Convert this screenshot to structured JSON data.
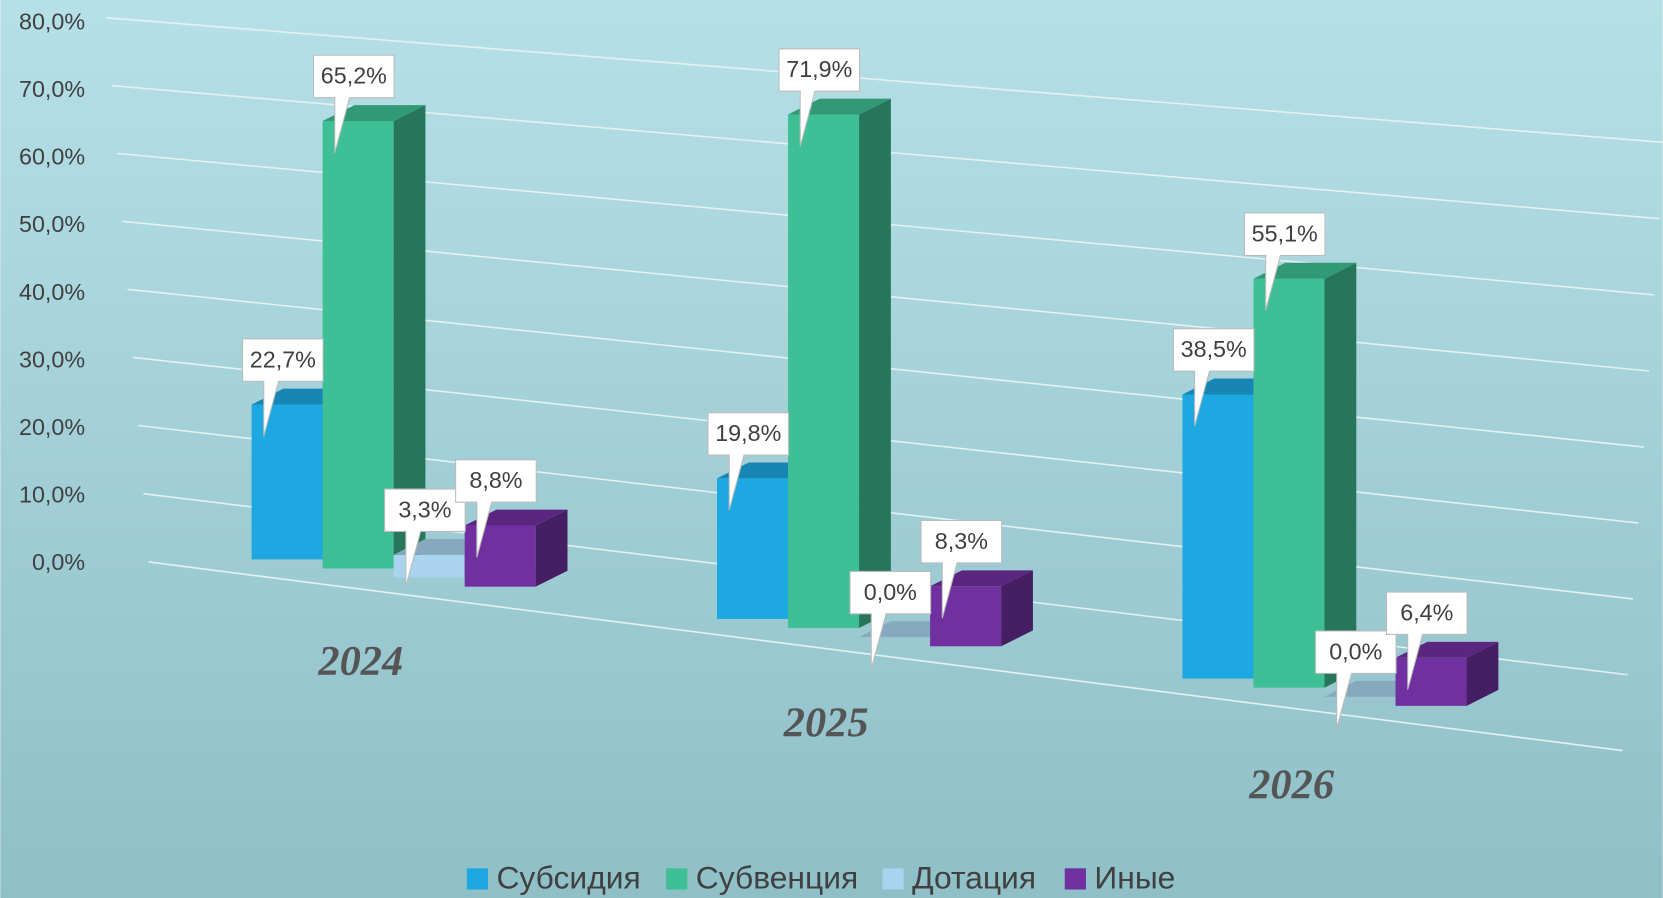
{
  "chart_data": {
    "type": "bar3d",
    "categories": [
      "2024",
      "2025",
      "2026"
    ],
    "series": [
      {
        "name": "Субсидия",
        "color": "#1ea8e2",
        "values": [
          22.7,
          19.8,
          38.5
        ],
        "value_labels": [
          "22,7%",
          "19,8%",
          "38,5%"
        ]
      },
      {
        "name": "Субвенция",
        "color": "#3fbf95",
        "values": [
          65.2,
          71.9,
          55.1
        ],
        "value_labels": [
          "65,2%",
          "71,9%",
          "55,1%"
        ]
      },
      {
        "name": "Дотация",
        "color": "#a9d3ee",
        "values": [
          3.3,
          0,
          0
        ],
        "value_labels": [
          "3,3%",
          "0,0%",
          "0,0%"
        ]
      },
      {
        "name": "Иные",
        "color": "#7030a0",
        "values": [
          8.8,
          8.3,
          6.4
        ],
        "value_labels": [
          "8,8%",
          "8,3%",
          "6,4%"
        ]
      }
    ],
    "ylim": [
      0,
      80
    ],
    "yticks": [
      {
        "value": 0,
        "label": "0,0%"
      },
      {
        "value": 10,
        "label": "10,0%"
      },
      {
        "value": 20,
        "label": "20,0%"
      },
      {
        "value": 30,
        "label": "30,0%"
      },
      {
        "value": 40,
        "label": "40,0%"
      },
      {
        "value": 50,
        "label": "50,0%"
      },
      {
        "value": 60,
        "label": "60,0%"
      },
      {
        "value": 70,
        "label": "70,0%"
      },
      {
        "value": 80,
        "label": "80,0%"
      }
    ],
    "grid": true,
    "legend": "bottom"
  }
}
